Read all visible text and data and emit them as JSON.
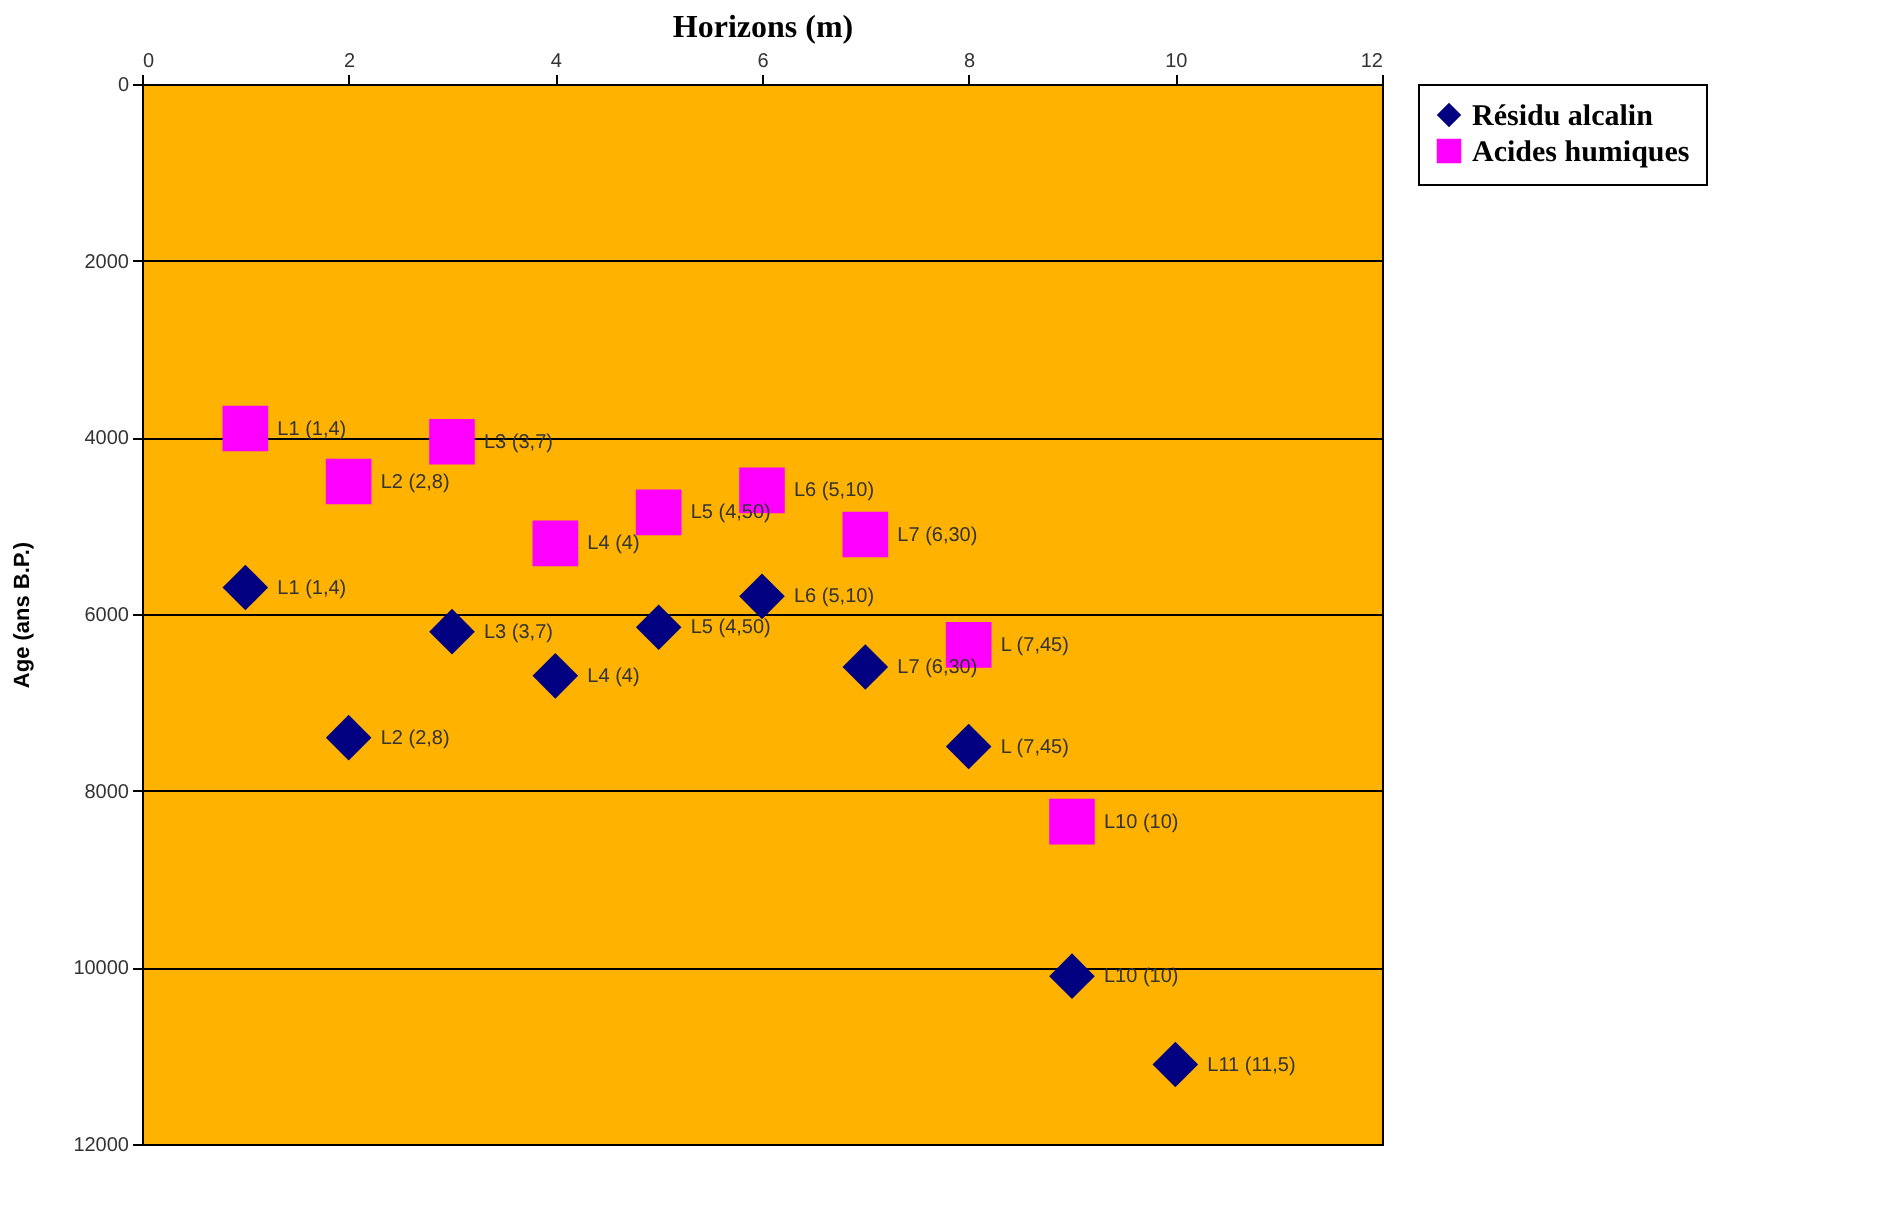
{
  "chart_data": {
    "type": "scatter",
    "xlabel": "Horizons (m)",
    "ylabel": "Age (ans B.P.)",
    "xlim": [
      0,
      12
    ],
    "xticks": [
      0,
      2,
      4,
      6,
      8,
      10,
      12
    ],
    "ylim": [
      12000,
      0
    ],
    "yticks": [
      0,
      2000,
      4000,
      6000,
      8000,
      10000,
      12000
    ],
    "grid": "y",
    "legend": "right",
    "series": [
      {
        "name": "Résidu alcalin",
        "color": "#000080",
        "marker": "diamond",
        "x": [
          1,
          2,
          3,
          4,
          5,
          6,
          7,
          8,
          9,
          10
        ],
        "values": [
          5700,
          7400,
          6200,
          6700,
          6150,
          5800,
          6600,
          7500,
          10100,
          11100
        ]
      },
      {
        "name": "Acides humiques",
        "color": "#ff00ff",
        "marker": "square",
        "x": [
          1,
          2,
          3,
          4,
          5,
          6,
          7,
          8,
          9
        ],
        "values": [
          3900,
          4500,
          4050,
          5200,
          4850,
          4600,
          5100,
          6350,
          8350
        ]
      }
    ],
    "annotations": [
      {
        "text": "L1 (1,4)",
        "x": 1,
        "y": 5700
      },
      {
        "text": "L2 (2,8)",
        "x": 2,
        "y": 7400
      },
      {
        "text": "L3 (3,7)",
        "x": 3,
        "y": 6200
      },
      {
        "text": "L4 (4)",
        "x": 4,
        "y": 6700
      },
      {
        "text": "L5 (4,50)",
        "x": 5,
        "y": 6150
      },
      {
        "text": "L6 (5,10)",
        "x": 6,
        "y": 5800
      },
      {
        "text": "L7 (6,30)",
        "x": 7,
        "y": 6600
      },
      {
        "text": "L (7,45)",
        "x": 8,
        "y": 7500
      },
      {
        "text": "L10 (10)",
        "x": 9,
        "y": 10100
      },
      {
        "text": "L11 (11,5)",
        "x": 10,
        "y": 11100
      },
      {
        "text": "L1 (1,4)",
        "x": 1,
        "y": 3900
      },
      {
        "text": "L2 (2,8)",
        "x": 2,
        "y": 4500
      },
      {
        "text": "L3 (3,7)",
        "x": 3,
        "y": 4050
      },
      {
        "text": "L4 (4)",
        "x": 4,
        "y": 5200
      },
      {
        "text": "L5 (4,50)",
        "x": 5,
        "y": 4850
      },
      {
        "text": "L6 (5,10)",
        "x": 6,
        "y": 4600
      },
      {
        "text": "L7 (6,30)",
        "x": 7,
        "y": 5100
      },
      {
        "text": "L (7,45)",
        "x": 8,
        "y": 6350
      },
      {
        "text": "L10 (10)",
        "x": 9,
        "y": 8350
      }
    ]
  }
}
